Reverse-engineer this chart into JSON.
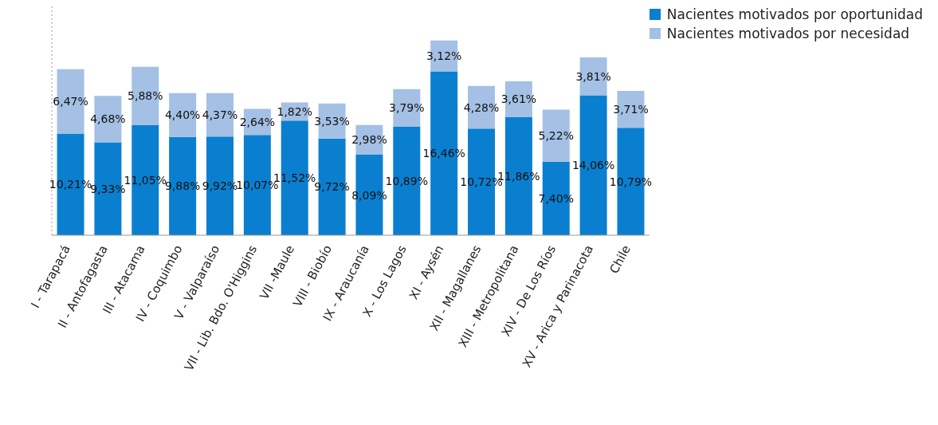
{
  "chart_data": {
    "type": "bar",
    "stacked": true,
    "categories": [
      "I - Tarapacá",
      "II - Antofagasta",
      "III - Atacama",
      "IV - Coquimbo",
      "V - Valparaíso",
      "VII - Lib. Bdo. O'Higgins",
      "VII -Maule",
      "VIII - Biobío",
      "IX - Araucanía",
      "X -  Los Lagos",
      "XI - Aysén",
      "XII - Magallanes",
      "XIII - Metropolitana",
      "XIV - De Los Ríos",
      "XV - Arica y Parinacota",
      "Chile"
    ],
    "series": [
      {
        "name": "Nacientes motivados por oportunidad",
        "color": "#0a7fcf",
        "values": [
          10.21,
          9.33,
          11.05,
          9.88,
          9.92,
          10.07,
          11.52,
          9.72,
          8.09,
          10.89,
          16.46,
          10.72,
          11.86,
          7.4,
          14.06,
          10.79
        ],
        "value_labels": [
          "10,21%",
          "9,33%",
          "11,05%",
          "9,88%",
          "9,92%",
          "10,07%",
          "11,52%",
          "9,72%",
          "8,09%",
          "10,89%",
          "16,46%",
          "10,72%",
          "11,86%",
          "7,40%",
          "14,06%",
          "10,79%"
        ]
      },
      {
        "name": "Nacientes motivados por necesidad",
        "color": "#a4c0e4",
        "values": [
          6.47,
          4.68,
          5.88,
          4.4,
          4.37,
          2.64,
          1.82,
          3.53,
          2.98,
          3.79,
          3.12,
          4.28,
          3.61,
          5.22,
          3.81,
          3.71
        ],
        "value_labels": [
          "6,47%",
          "4,68%",
          "5,88%",
          "4,40%",
          "4,37%",
          "2,64%",
          "1,82%",
          "3,53%",
          "2,98%",
          "3,79%",
          "3,12%",
          "4,28%",
          "3,61%",
          "5,22%",
          "3,81%",
          "3,71%"
        ]
      }
    ],
    "ylim": [
      0,
      23
    ],
    "tick_labels": "x",
    "legend": "top right"
  }
}
